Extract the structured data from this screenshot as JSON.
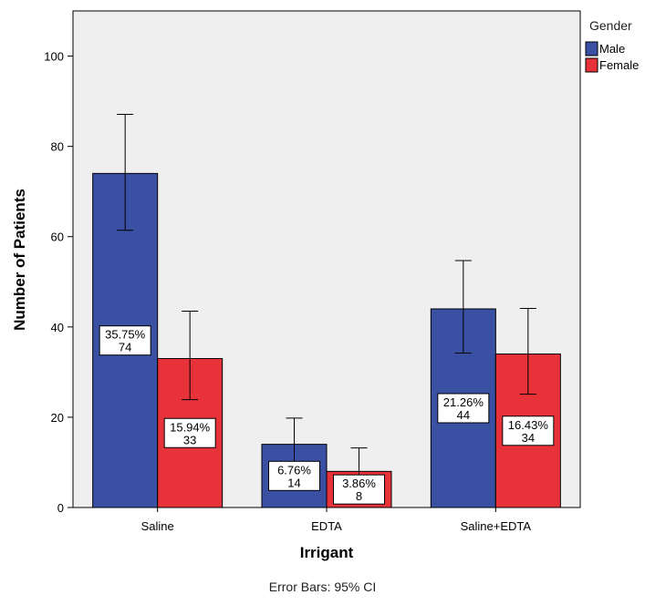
{
  "chart_data": {
    "type": "bar",
    "title": "",
    "xlabel": "Irrigant",
    "ylabel": "Number of Patients",
    "categories": [
      "Saline",
      "EDTA",
      "Saline+EDTA"
    ],
    "series": [
      {
        "name": "Male",
        "color": "#3a50a3",
        "values": [
          74,
          14,
          44
        ],
        "ci_low": [
          61.4,
          8.1,
          34.2
        ],
        "ci_high": [
          87.1,
          19.8,
          54.7
        ],
        "labels": [
          {
            "pct": "35.75%",
            "count": "74"
          },
          {
            "pct": "6.76%",
            "count": "14"
          },
          {
            "pct": "21.26%",
            "count": "44"
          }
        ]
      },
      {
        "name": "Female",
        "color": "#e8323a",
        "values": [
          33,
          8,
          34
        ],
        "ci_low": [
          23.9,
          2.9,
          25.1
        ],
        "ci_high": [
          43.5,
          13.2,
          44.1
        ],
        "labels": [
          {
            "pct": "15.94%",
            "count": "33"
          },
          {
            "pct": "3.86%",
            "count": "8"
          },
          {
            "pct": "16.43%",
            "count": "34"
          }
        ]
      }
    ],
    "ylim": [
      0,
      110
    ],
    "yticks": [
      0,
      20,
      40,
      60,
      80,
      100
    ],
    "grid": false,
    "legend": {
      "title": "Gender",
      "position": "top-right"
    },
    "note": "Error Bars: 95% CI"
  }
}
